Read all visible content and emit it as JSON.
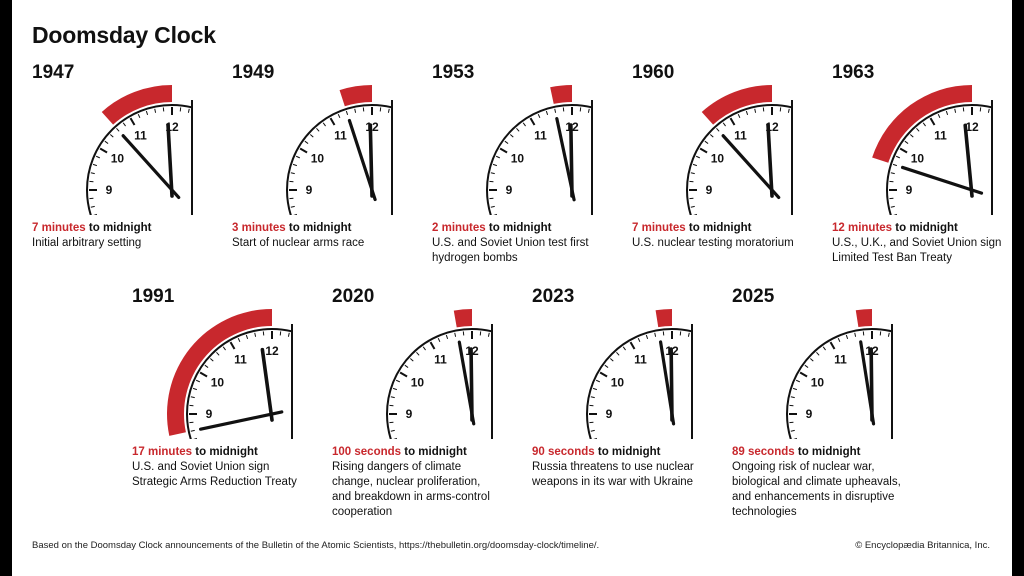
{
  "title": "Doomsday Clock",
  "accent": "#c8282d",
  "clocks": [
    {
      "year": "1947",
      "amount": "7 minutes",
      "suffix": "to midnight",
      "description": "Initial arbitrary setting",
      "minutes": 7
    },
    {
      "year": "1949",
      "amount": "3 minutes",
      "suffix": "to midnight",
      "description": "Start of nuclear arms race",
      "minutes": 3
    },
    {
      "year": "1953",
      "amount": "2 minutes",
      "suffix": "to midnight",
      "description": "U.S. and Soviet Union test first hydrogen bombs",
      "minutes": 2
    },
    {
      "year": "1960",
      "amount": "7 minutes",
      "suffix": "to midnight",
      "description": "U.S. nuclear testing moratorium",
      "minutes": 7
    },
    {
      "year": "1963",
      "amount": "12 minutes",
      "suffix": "to midnight",
      "description": "U.S., U.K., and Soviet Union sign Limited Test Ban Treaty",
      "minutes": 12
    },
    {
      "year": "1991",
      "amount": "17 minutes",
      "suffix": "to midnight",
      "description": "U.S. and Soviet Union sign Strategic Arms Reduction Treaty",
      "minutes": 17
    },
    {
      "year": "2020",
      "amount": "100 seconds",
      "suffix": "to midnight",
      "description": "Rising dangers of climate change, nuclear proliferation, and breakdown in arms-control cooperation",
      "minutes": 1.667
    },
    {
      "year": "2023",
      "amount": "90 seconds",
      "suffix": "to midnight",
      "description": "Russia threatens to use nuclear weapons in its war with Ukraine",
      "minutes": 1.5
    },
    {
      "year": "2025",
      "amount": "89 seconds",
      "suffix": "to midnight",
      "description": "Ongoing risk of nuclear war, biological and climate upheavals, and enhancements in disruptive technologies",
      "minutes": 1.483
    }
  ],
  "dial_labels": [
    "9",
    "10",
    "11",
    "12"
  ],
  "footer": {
    "source": "Based on the Doomsday Clock announcements of the Bulletin of the Atomic Scientists, https://thebulletin.org/doomsday-clock/timeline/.",
    "copyright": "© Encyclopædia Britannica, Inc."
  }
}
